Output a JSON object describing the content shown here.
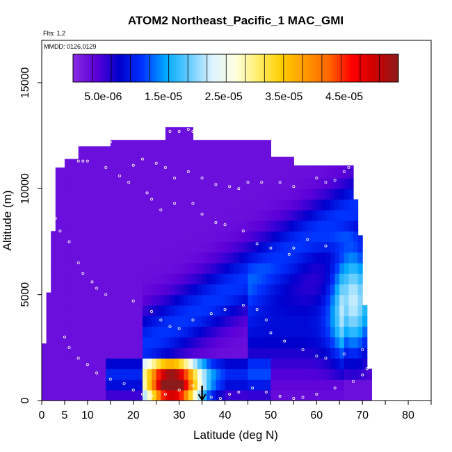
{
  "chart_data": {
    "type": "heatmap",
    "title": "ATOM2 Northeast_Pacific_1 MAC_GMI",
    "subtitle_flights": "Flts: 1,2",
    "subtitle_dates": "MMDD: 0126,0129",
    "xlabel": "Latitude (deg N)",
    "ylabel": "Altitude (m)",
    "xlim": [
      0,
      85
    ],
    "ylim": [
      0,
      17000
    ],
    "x_ticks": [
      0,
      5,
      10,
      20,
      30,
      40,
      50,
      60,
      70,
      80
    ],
    "y_ticks": [
      0,
      5000,
      10000,
      15000
    ],
    "x_tick_labels": [
      "0",
      "5",
      "10",
      "20",
      "30",
      "40",
      "50",
      "60",
      "70",
      "80"
    ],
    "y_tick_labels": [
      "0",
      "5000",
      "10000",
      "15000"
    ],
    "colorbar": {
      "range": [
        0,
        5.4e-05
      ],
      "ticks": [
        5e-06,
        1.5e-05,
        2.5e-05,
        3.5e-05,
        4.5e-05
      ],
      "tick_labels": [
        "5.0e-06",
        "1.5e-05",
        "2.5e-05",
        "3.5e-05",
        "4.5e-05"
      ],
      "colors": [
        "#8a2be2",
        "#5a00d8",
        "#0000cd",
        "#0033ff",
        "#00aaff",
        "#66ccff",
        "#dff4ff",
        "#ffffe0",
        "#ffee66",
        "#ffcc00",
        "#ff9900",
        "#ff6600",
        "#ff0000",
        "#cc0000",
        "#8b1a1a"
      ]
    },
    "arrow_marker": {
      "x": 35.0,
      "y_top": 700,
      "y_bottom": 0
    },
    "flight_track_points": [
      [
        8,
        11300
      ],
      [
        9,
        11300
      ],
      [
        10,
        11300
      ],
      [
        12,
        12200
      ],
      [
        15,
        12200
      ],
      [
        18,
        12500
      ],
      [
        19,
        12500
      ],
      [
        28,
        12700
      ],
      [
        30,
        12700
      ],
      [
        32,
        12800
      ],
      [
        33,
        12700
      ],
      [
        35,
        12800
      ],
      [
        20,
        11100
      ],
      [
        22,
        11400
      ],
      [
        25,
        11200
      ],
      [
        27,
        11000
      ],
      [
        29,
        10500
      ],
      [
        32,
        10800
      ],
      [
        35,
        10500
      ],
      [
        38,
        10200
      ],
      [
        41,
        10100
      ],
      [
        43,
        10000
      ],
      [
        45,
        10300
      ],
      [
        48,
        10300
      ],
      [
        52,
        10300
      ],
      [
        55,
        10100
      ],
      [
        60,
        10500
      ],
      [
        62,
        10300
      ],
      [
        64,
        10400
      ],
      [
        66,
        10800
      ],
      [
        67,
        11000
      ],
      [
        14,
        11000
      ],
      [
        17,
        10600
      ],
      [
        19,
        10300
      ],
      [
        23,
        9800
      ],
      [
        24,
        9500
      ],
      [
        26,
        9000
      ],
      [
        29,
        9300
      ],
      [
        33,
        9300
      ],
      [
        35,
        8800
      ],
      [
        38,
        8400
      ],
      [
        40,
        8300
      ],
      [
        44,
        8000
      ],
      [
        47,
        7400
      ],
      [
        50,
        7200
      ],
      [
        54,
        6900
      ],
      [
        55,
        7200
      ],
      [
        58,
        7600
      ],
      [
        62,
        7300
      ],
      [
        3,
        8600
      ],
      [
        4,
        8000
      ],
      [
        6,
        7500
      ],
      [
        8,
        6500
      ],
      [
        9,
        6000
      ],
      [
        11,
        5600
      ],
      [
        12,
        5300
      ],
      [
        14,
        5000
      ],
      [
        20,
        4700
      ],
      [
        24,
        4200
      ],
      [
        26,
        3800
      ],
      [
        28,
        3500
      ],
      [
        30,
        3400
      ],
      [
        33,
        3800
      ],
      [
        37,
        4100
      ],
      [
        40,
        4300
      ],
      [
        44,
        4500
      ],
      [
        47,
        4300
      ],
      [
        49,
        3800
      ],
      [
        50,
        3200
      ],
      [
        53,
        2800
      ],
      [
        57,
        2400
      ],
      [
        60,
        2100
      ],
      [
        62,
        2000
      ],
      [
        66,
        2200
      ],
      [
        70,
        2400
      ],
      [
        5,
        3000
      ],
      [
        6,
        2500
      ],
      [
        8,
        2000
      ],
      [
        10,
        1700
      ],
      [
        12,
        1300
      ],
      [
        15,
        1000
      ],
      [
        18,
        800
      ],
      [
        20,
        500
      ],
      [
        22,
        300
      ],
      [
        24,
        200
      ],
      [
        27,
        300
      ],
      [
        30,
        500
      ],
      [
        33,
        700
      ],
      [
        35,
        200
      ],
      [
        37,
        150
      ],
      [
        39,
        100
      ],
      [
        41,
        300
      ],
      [
        43,
        400
      ],
      [
        46,
        600
      ],
      [
        49,
        400
      ],
      [
        52,
        200
      ],
      [
        55,
        100
      ],
      [
        57,
        150
      ],
      [
        60,
        300
      ],
      [
        64,
        600
      ],
      [
        68,
        900
      ],
      [
        70,
        1200
      ],
      [
        71,
        1500
      ]
    ]
  }
}
